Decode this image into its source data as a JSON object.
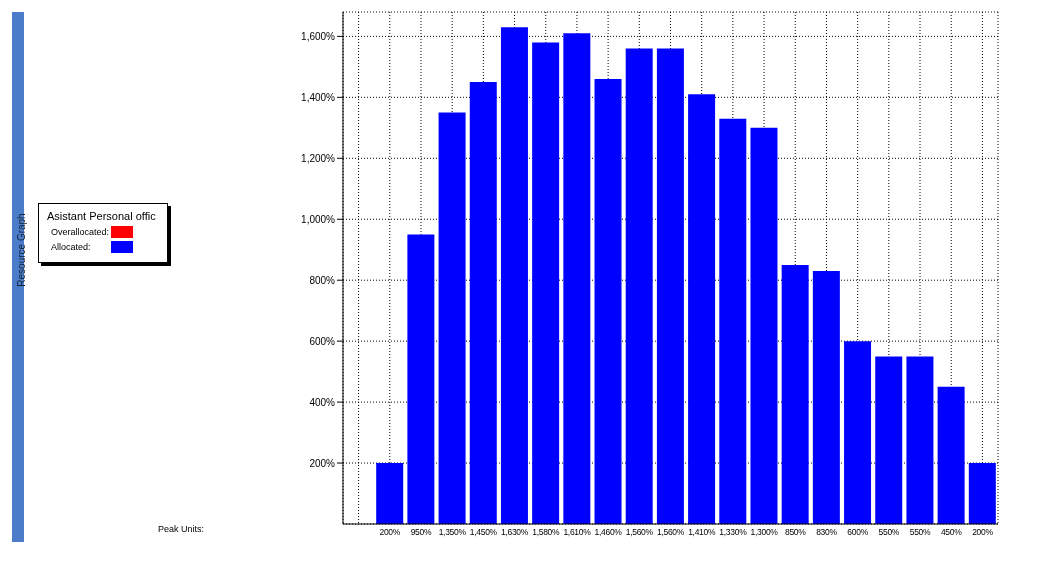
{
  "chart_data": {
    "type": "bar",
    "legend_title": "Asistant Personal offic",
    "annotations": [
      "Resource Graph",
      "Peak Units:"
    ],
    "categories": [
      null,
      null,
      null,
      null,
      null,
      null,
      null,
      null,
      null,
      null,
      null,
      null,
      null,
      null,
      null,
      null,
      null,
      null,
      null,
      null,
      null
    ],
    "series": [
      {
        "name": "Overallocated:",
        "color": "#ff0000",
        "values": [
          null,
          null,
          null,
          null,
          null,
          null,
          null,
          null,
          null,
          null,
          null,
          null,
          null,
          null,
          null,
          null,
          null,
          null,
          null,
          null,
          null
        ]
      },
      {
        "name": "Allocated:",
        "color": "#0000ff",
        "values": [
          null,
          200,
          950,
          1350,
          1450,
          1630,
          1580,
          1610,
          1460,
          1560,
          1560,
          1410,
          1330,
          1300,
          850,
          830,
          600,
          550,
          550,
          450,
          200
        ],
        "value_labels": [
          null,
          "200%",
          "950%",
          "1,350%",
          "1,450%",
          "1,630%",
          "1,580%",
          "1,610%",
          "1,460%",
          "1,560%",
          "1,560%",
          "1,410%",
          "1,330%",
          "1,300%",
          "850%",
          "830%",
          "600%",
          "550%",
          "550%",
          "450%",
          "200%"
        ]
      }
    ],
    "stacked": true,
    "ylim": [
      0,
      1680
    ],
    "yticks": [
      {
        "value": 200,
        "label": "200%"
      },
      {
        "value": 400,
        "label": "400%"
      },
      {
        "value": 600,
        "label": "600%"
      },
      {
        "value": 800,
        "label": "800%"
      },
      {
        "value": 1000,
        "label": "1,000%"
      },
      {
        "value": 1200,
        "label": "1,200%"
      },
      {
        "value": 1400,
        "label": "1,400%"
      },
      {
        "value": 1600,
        "label": "1,600%"
      }
    ],
    "grid": true,
    "legend": "left"
  }
}
